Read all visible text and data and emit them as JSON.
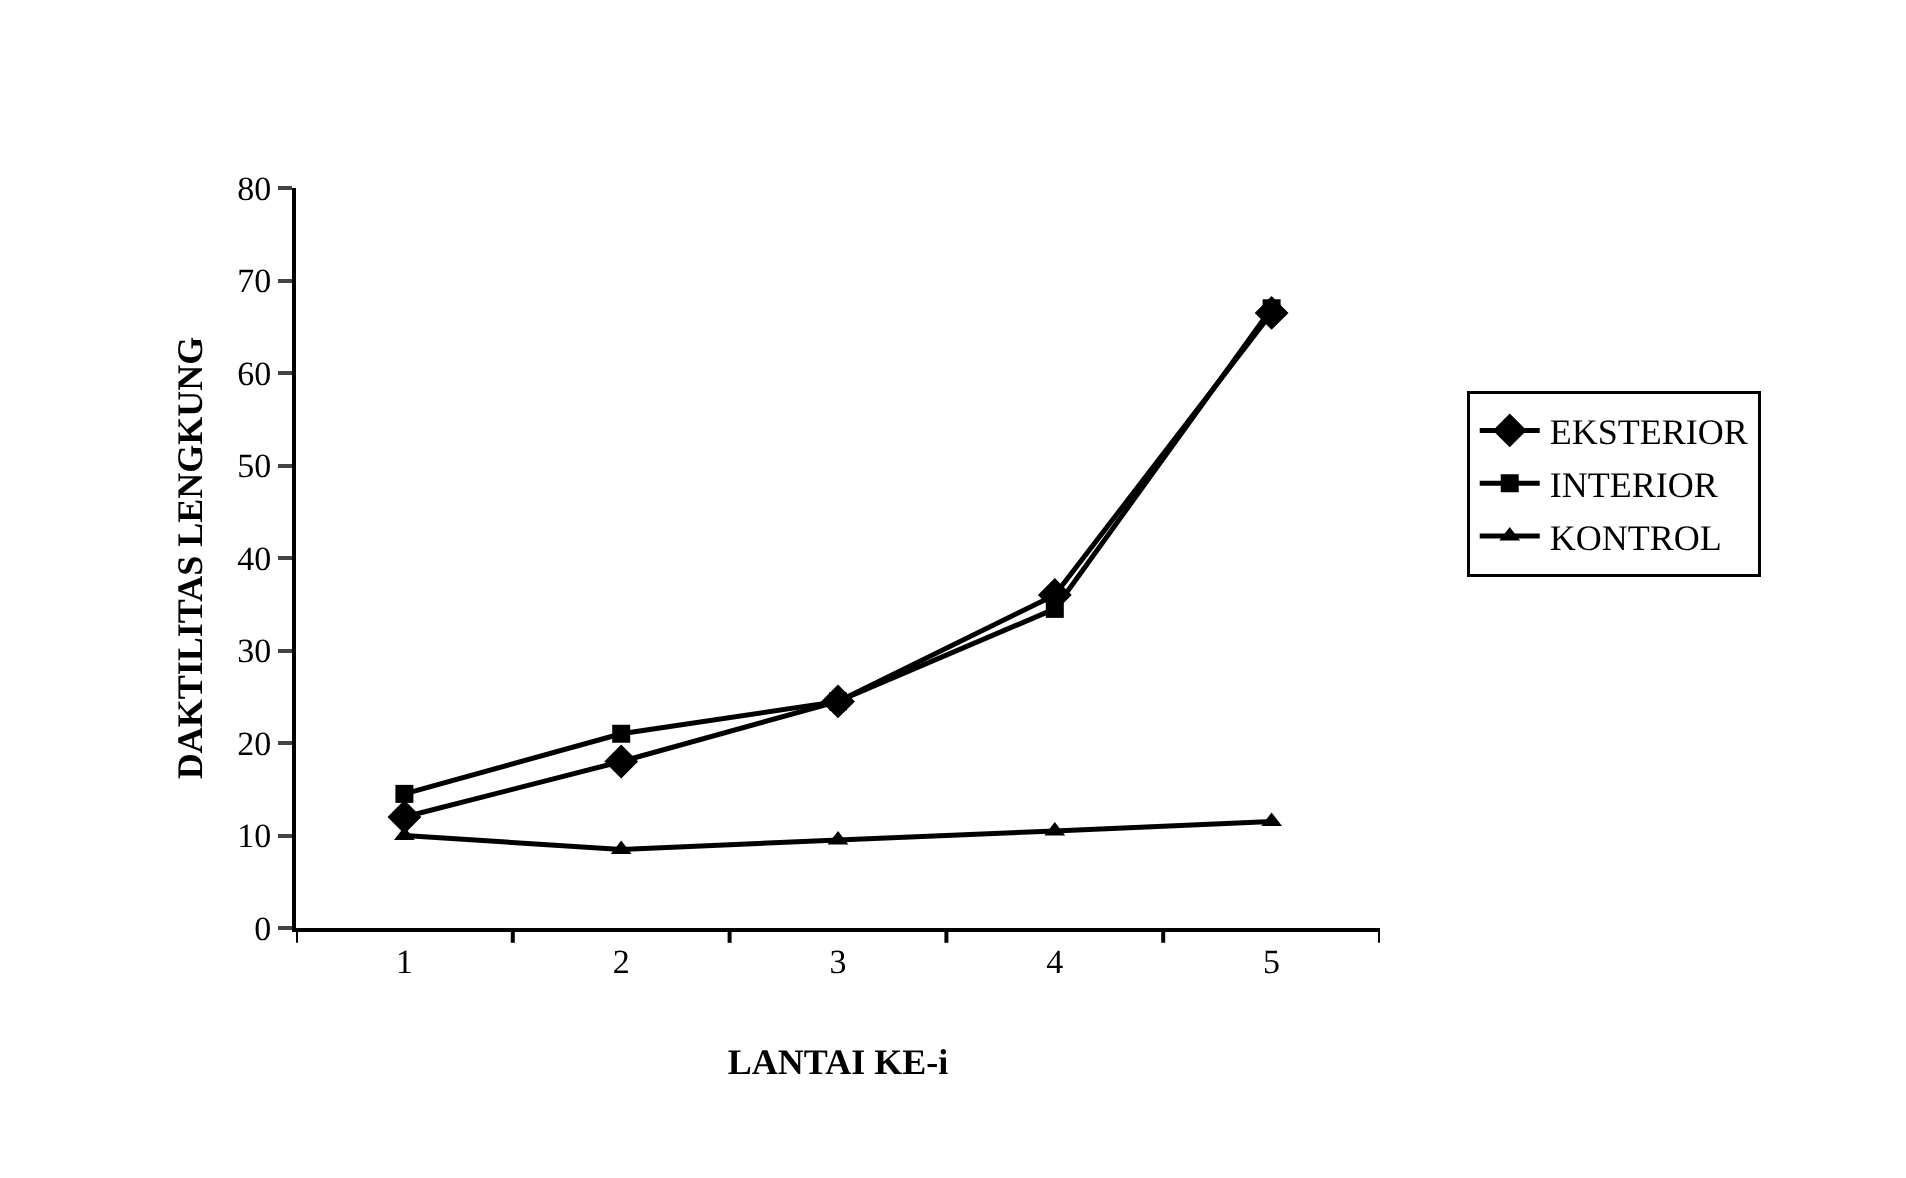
{
  "chart_data": {
    "type": "line",
    "xlabel": "LANTAI KE-i",
    "ylabel": "DAKTILITAS LENGKUNG",
    "categories": [
      "1",
      "2",
      "3",
      "4",
      "5"
    ],
    "ylim": [
      0,
      80
    ],
    "yticks": [
      0,
      10,
      20,
      30,
      40,
      50,
      60,
      70,
      80
    ],
    "grid": false,
    "legend": "right",
    "line_style": "solid",
    "series": [
      {
        "name": "EKSTERIOR",
        "color": "#000000",
        "marker": "diamond",
        "values": [
          12,
          18,
          24.5,
          36,
          66.5
        ]
      },
      {
        "name": "INTERIOR",
        "color": "#000000",
        "marker": "square",
        "values": [
          14.5,
          21,
          24.5,
          34.5,
          67
        ]
      },
      {
        "name": "KONTROL",
        "color": "#000000",
        "marker": "triangle",
        "values": [
          10,
          8.5,
          9.5,
          10.5,
          11.5
        ]
      }
    ]
  }
}
